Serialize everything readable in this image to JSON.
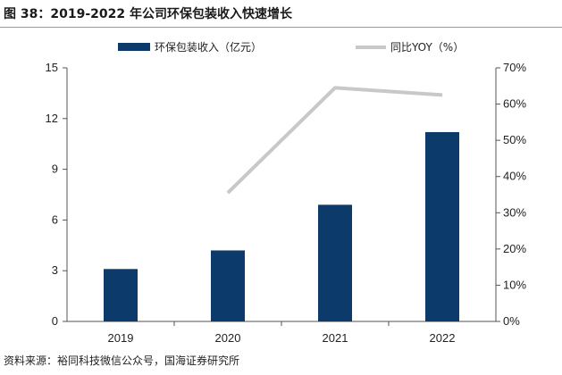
{
  "figure": {
    "title": "图 38：2019-2022 年公司环保包装收入快速增长",
    "source": "资料来源：裕同科技微信公众号，国海证券研究所"
  },
  "chart_data": {
    "type": "bar",
    "categories": [
      "2019",
      "2020",
      "2021",
      "2022"
    ],
    "series": [
      {
        "name": "环保包装收入（亿元）",
        "type": "bar",
        "axis": "left",
        "values": [
          3.1,
          4.2,
          6.9,
          11.2
        ],
        "color": "#0b3a6b"
      },
      {
        "name": "同比YOY（%）",
        "type": "line",
        "axis": "right",
        "values": [
          null,
          35.5,
          64.5,
          62.5
        ],
        "color": "#c8c8c8"
      }
    ],
    "y_left": {
      "ylim": [
        0,
        15
      ],
      "ticks": [
        "0",
        "3",
        "6",
        "9",
        "12",
        "15"
      ]
    },
    "y_right": {
      "ylim": [
        0,
        70
      ],
      "ticks": [
        "0%",
        "10%",
        "20%",
        "30%",
        "40%",
        "50%",
        "60%",
        "70%"
      ]
    },
    "legend_placement": "top",
    "grid": false
  }
}
